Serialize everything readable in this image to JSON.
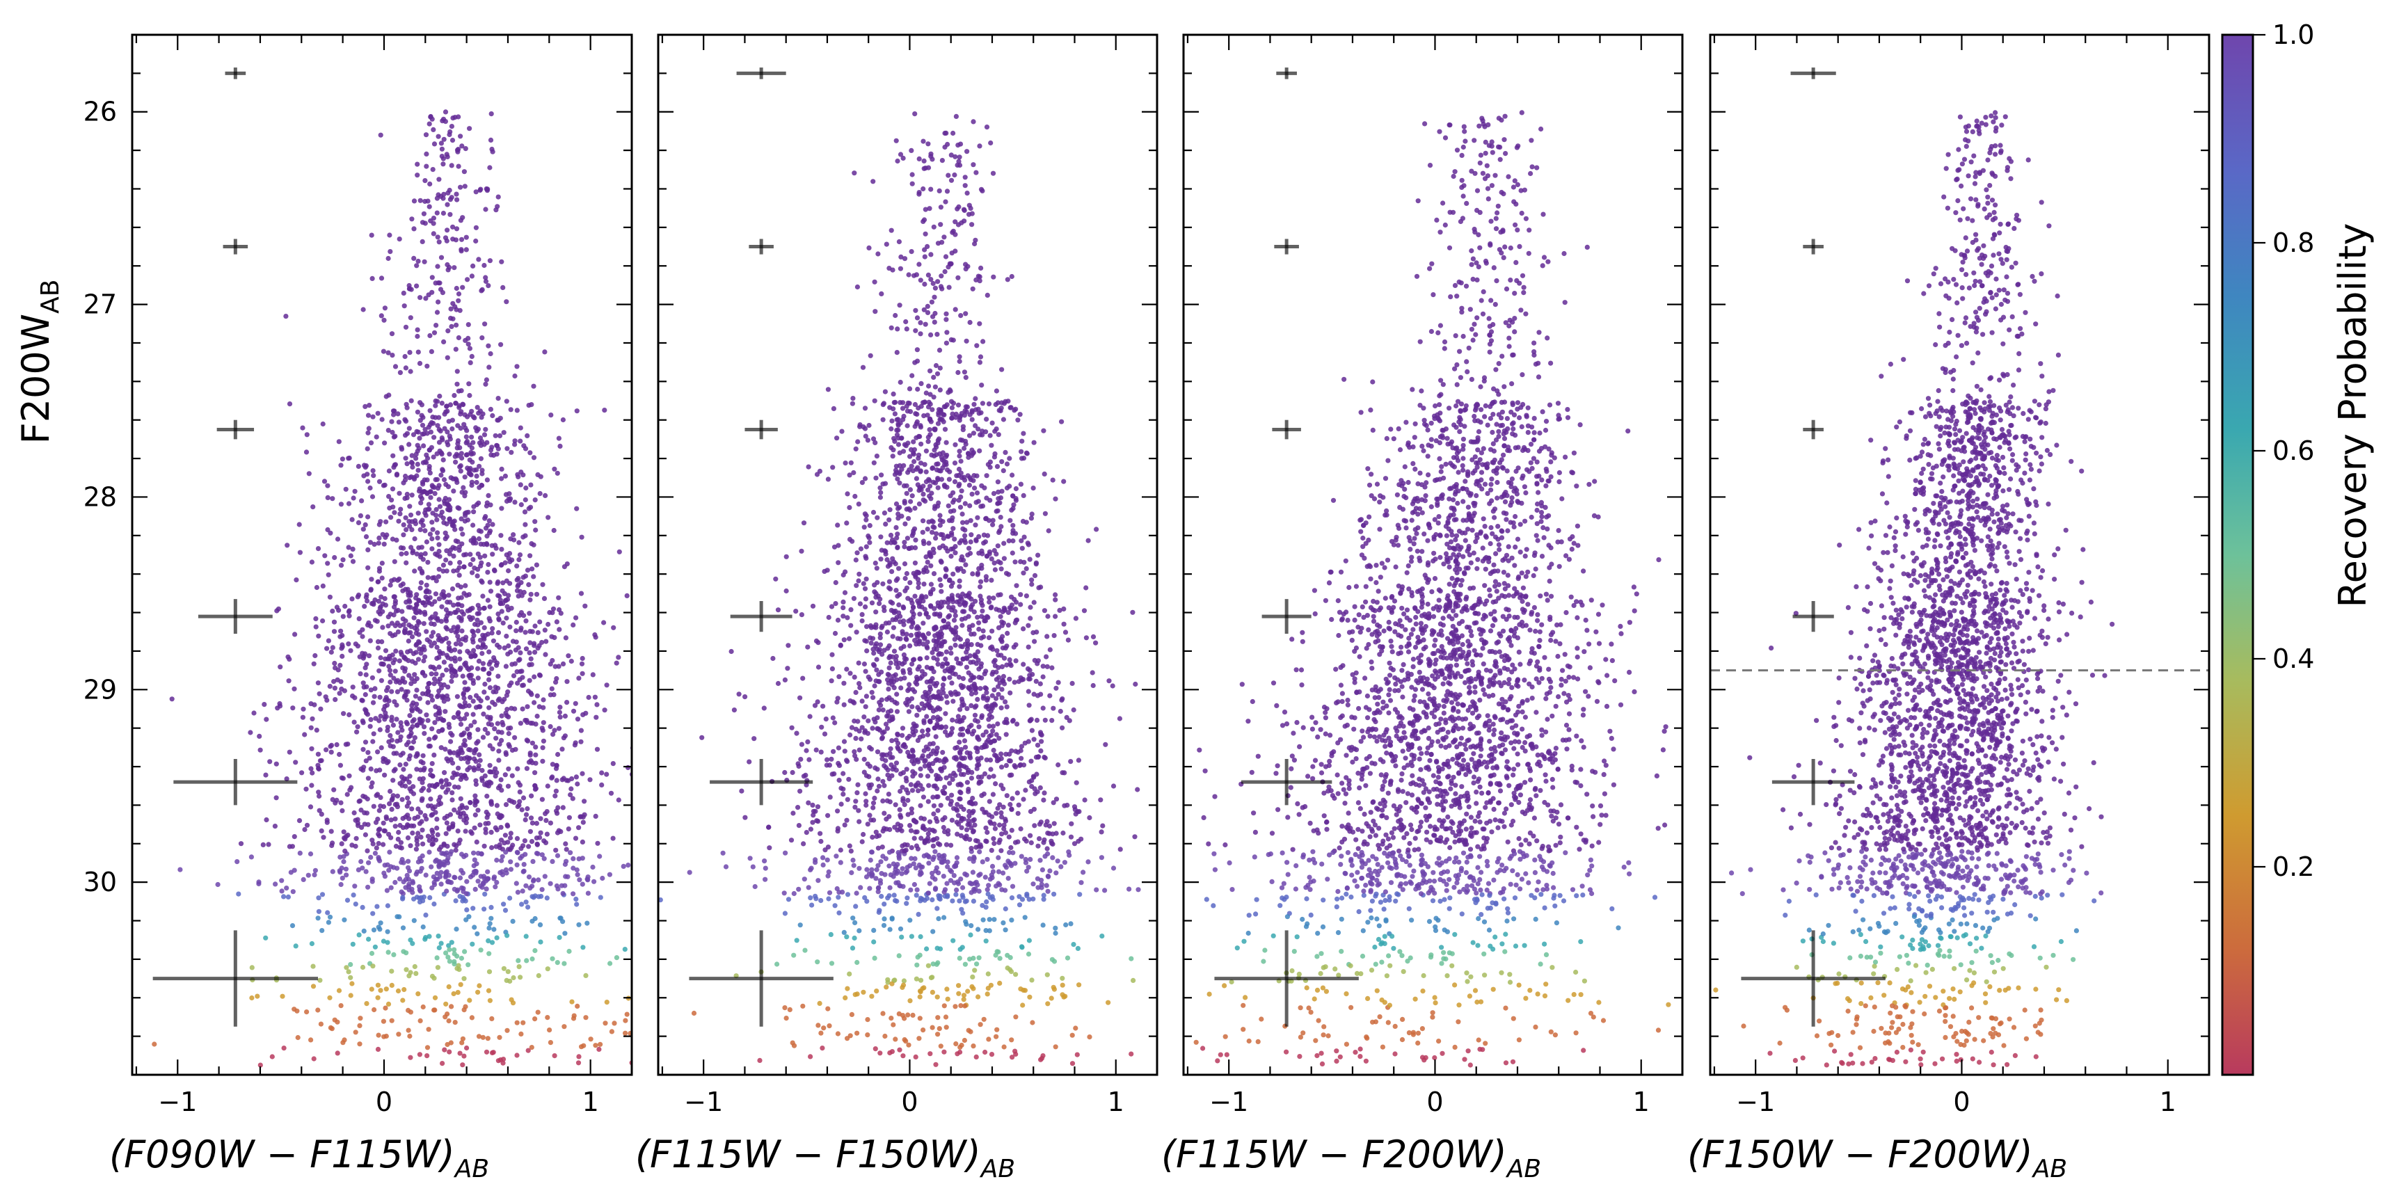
{
  "chart_data": [
    {
      "type": "scatter",
      "panel": 1,
      "xlabel": "(F090W - F115W)_AB",
      "ylabel": "F200W_AB",
      "xlim": [
        -1.22,
        1.2
      ],
      "ylim": [
        31.0,
        25.6
      ],
      "y_inverted": true,
      "xticks": [
        -1,
        0,
        1
      ],
      "yticks": [
        26,
        27,
        28,
        29,
        30
      ],
      "color_by": "Recovery Probability",
      "point_cloud": {
        "center_x": 0.3,
        "spread_x_bright": 0.1,
        "spread_x_faint": 0.5,
        "mag_min": 25.9,
        "mag_max": 30.95,
        "count": 3000
      },
      "error_bars": [
        {
          "x": -0.72,
          "y": 25.8,
          "xerr": 0.05,
          "yerr": 0.03
        },
        {
          "x": -0.72,
          "y": 26.7,
          "xerr": 0.06,
          "yerr": 0.04
        },
        {
          "x": -0.72,
          "y": 27.65,
          "xerr": 0.09,
          "yerr": 0.05
        },
        {
          "x": -0.72,
          "y": 28.62,
          "xerr": 0.18,
          "yerr": 0.09
        },
        {
          "x": -0.72,
          "y": 29.48,
          "xerr": 0.3,
          "yerr": 0.12
        },
        {
          "x": -0.72,
          "y": 30.5,
          "xerr": 0.4,
          "yerr": 0.25
        }
      ]
    },
    {
      "type": "scatter",
      "panel": 2,
      "xlabel": "(F115W - F150W)_AB",
      "xlim": [
        -1.22,
        1.2
      ],
      "ylim": [
        31.0,
        25.6
      ],
      "xticks": [
        -1,
        0,
        1
      ],
      "point_cloud": {
        "center_x": 0.15,
        "spread_x_bright": 0.1,
        "spread_x_faint": 0.45,
        "mag_min": 25.9,
        "mag_max": 30.95,
        "count": 3000
      },
      "error_bars": [
        {
          "x": -0.72,
          "y": 25.8,
          "xerr": 0.12,
          "yerr": 0.03
        },
        {
          "x": -0.72,
          "y": 26.7,
          "xerr": 0.06,
          "yerr": 0.04
        },
        {
          "x": -0.72,
          "y": 27.65,
          "xerr": 0.08,
          "yerr": 0.05
        },
        {
          "x": -0.72,
          "y": 28.62,
          "xerr": 0.15,
          "yerr": 0.08
        },
        {
          "x": -0.72,
          "y": 29.48,
          "xerr": 0.25,
          "yerr": 0.12
        },
        {
          "x": -0.72,
          "y": 30.5,
          "xerr": 0.35,
          "yerr": 0.25
        }
      ]
    },
    {
      "type": "scatter",
      "panel": 3,
      "xlabel": "(F115W - F200W)_AB",
      "xlim": [
        -1.22,
        1.2
      ],
      "ylim": [
        31.0,
        25.6
      ],
      "xticks": [
        -1,
        0,
        1
      ],
      "point_cloud": {
        "center_x": 0.25,
        "spread_x_bright": 0.1,
        "spread_x_faint": 0.5,
        "faint_shift_x": -0.45,
        "mag_min": 25.9,
        "mag_max": 30.95,
        "count": 3000
      },
      "error_bars": [
        {
          "x": -0.72,
          "y": 25.8,
          "xerr": 0.05,
          "yerr": 0.03
        },
        {
          "x": -0.72,
          "y": 26.7,
          "xerr": 0.06,
          "yerr": 0.04
        },
        {
          "x": -0.72,
          "y": 27.65,
          "xerr": 0.07,
          "yerr": 0.05
        },
        {
          "x": -0.72,
          "y": 28.62,
          "xerr": 0.12,
          "yerr": 0.09
        },
        {
          "x": -0.72,
          "y": 29.48,
          "xerr": 0.22,
          "yerr": 0.12
        },
        {
          "x": -0.72,
          "y": 30.5,
          "xerr": 0.35,
          "yerr": 0.25
        }
      ]
    },
    {
      "type": "scatter",
      "panel": 4,
      "xlabel": "(F150W - F200W)_AB",
      "xlim": [
        -1.22,
        1.2
      ],
      "ylim": [
        31.0,
        25.6
      ],
      "xticks": [
        -1,
        0,
        1
      ],
      "hline": 28.9,
      "point_cloud": {
        "center_x": 0.1,
        "spread_x_bright": 0.08,
        "spread_x_faint": 0.35,
        "faint_shift_x": -0.35,
        "mag_min": 25.9,
        "mag_max": 30.95,
        "count": 3000
      },
      "error_bars": [
        {
          "x": -0.72,
          "y": 25.8,
          "xerr": 0.11,
          "yerr": 0.03
        },
        {
          "x": -0.72,
          "y": 26.7,
          "xerr": 0.05,
          "yerr": 0.04
        },
        {
          "x": -0.72,
          "y": 27.65,
          "xerr": 0.05,
          "yerr": 0.05
        },
        {
          "x": -0.72,
          "y": 28.62,
          "xerr": 0.1,
          "yerr": 0.08
        },
        {
          "x": -0.72,
          "y": 29.48,
          "xerr": 0.2,
          "yerr": 0.12
        },
        {
          "x": -0.72,
          "y": 30.5,
          "xerr": 0.35,
          "yerr": 0.25
        }
      ]
    }
  ],
  "colorbar": {
    "label": "Recovery Probability",
    "ticks": [
      0.2,
      0.4,
      0.6,
      0.8,
      1.0
    ],
    "tick_labels": [
      "0.2",
      "0.4",
      "0.6",
      "0.8",
      "1.0"
    ],
    "range": [
      0.0,
      1.0
    ],
    "colormap": "rainbow-like (purple high, red low)",
    "colors": [
      "#b83a5e",
      "#cc6b3d",
      "#cf9b30",
      "#a7bb5e",
      "#6dc19a",
      "#3aa8b0",
      "#3f86c0",
      "#5a68c6",
      "#6f46ad",
      "#642b96"
    ]
  },
  "labels": {
    "ylabel_main": "F200W",
    "ylabel_sub": "AB",
    "x1_main": "(F090W − F115W)",
    "x2_main": "(F115W − F150W)",
    "x3_main": "(F115W − F200W)",
    "x4_main": "(F150W − F200W)",
    "x_sub": "AB"
  }
}
